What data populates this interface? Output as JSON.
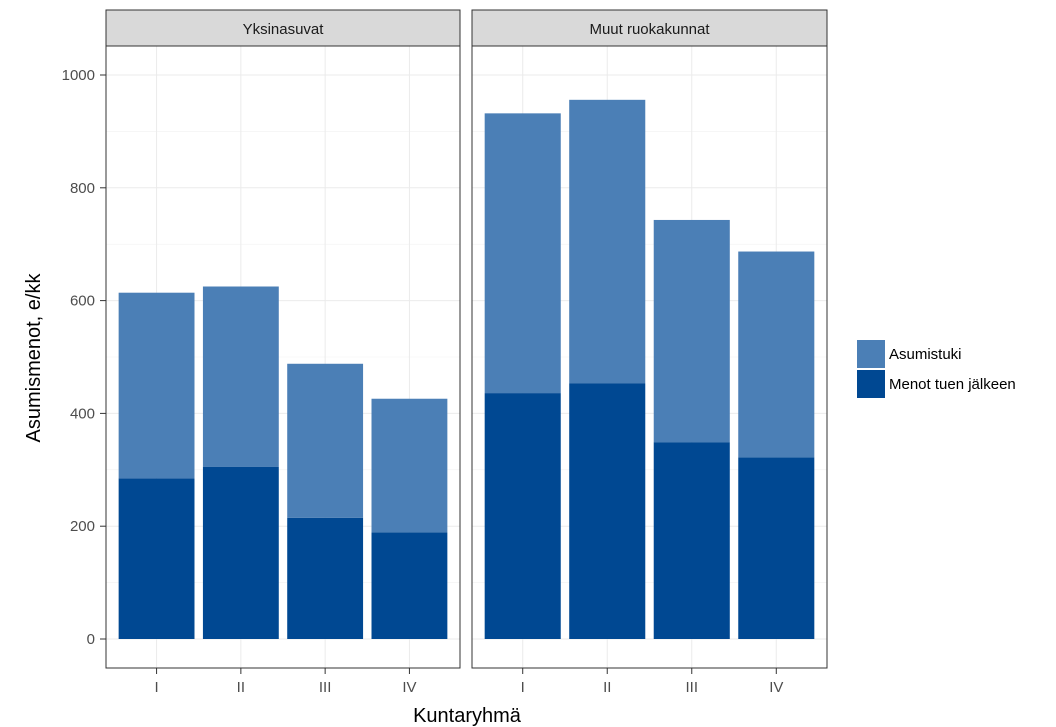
{
  "chart_data": {
    "type": "bar",
    "stacked": true,
    "xlabel": "Kuntaryhmä",
    "ylabel": "Asumismenot, e/kk",
    "ylim": [
      0,
      1000
    ],
    "yticks": [
      0,
      200,
      400,
      600,
      800,
      1000
    ],
    "categories": [
      "I",
      "II",
      "III",
      "IV"
    ],
    "grid": true,
    "legend_position": "right",
    "legend": [
      {
        "label": "Asumistuki",
        "color": "#4b7fb6"
      },
      {
        "label": "Menot tuen jälkeen",
        "color": "#004892"
      }
    ],
    "panels": [
      {
        "title": "Yksinasuvat",
        "series": [
          {
            "name": "Menot tuen jälkeen",
            "values": [
              285,
              305,
              215,
              189
            ]
          },
          {
            "name": "Asumistuki",
            "values": [
              329,
              320,
              273,
              237
            ]
          }
        ]
      },
      {
        "title": "Muut ruokakunnat",
        "series": [
          {
            "name": "Menot tuen jälkeen",
            "values": [
              436,
              453,
              349,
              322
            ]
          },
          {
            "name": "Asumistuki",
            "values": [
              496,
              503,
              394,
              365
            ]
          }
        ]
      }
    ]
  }
}
